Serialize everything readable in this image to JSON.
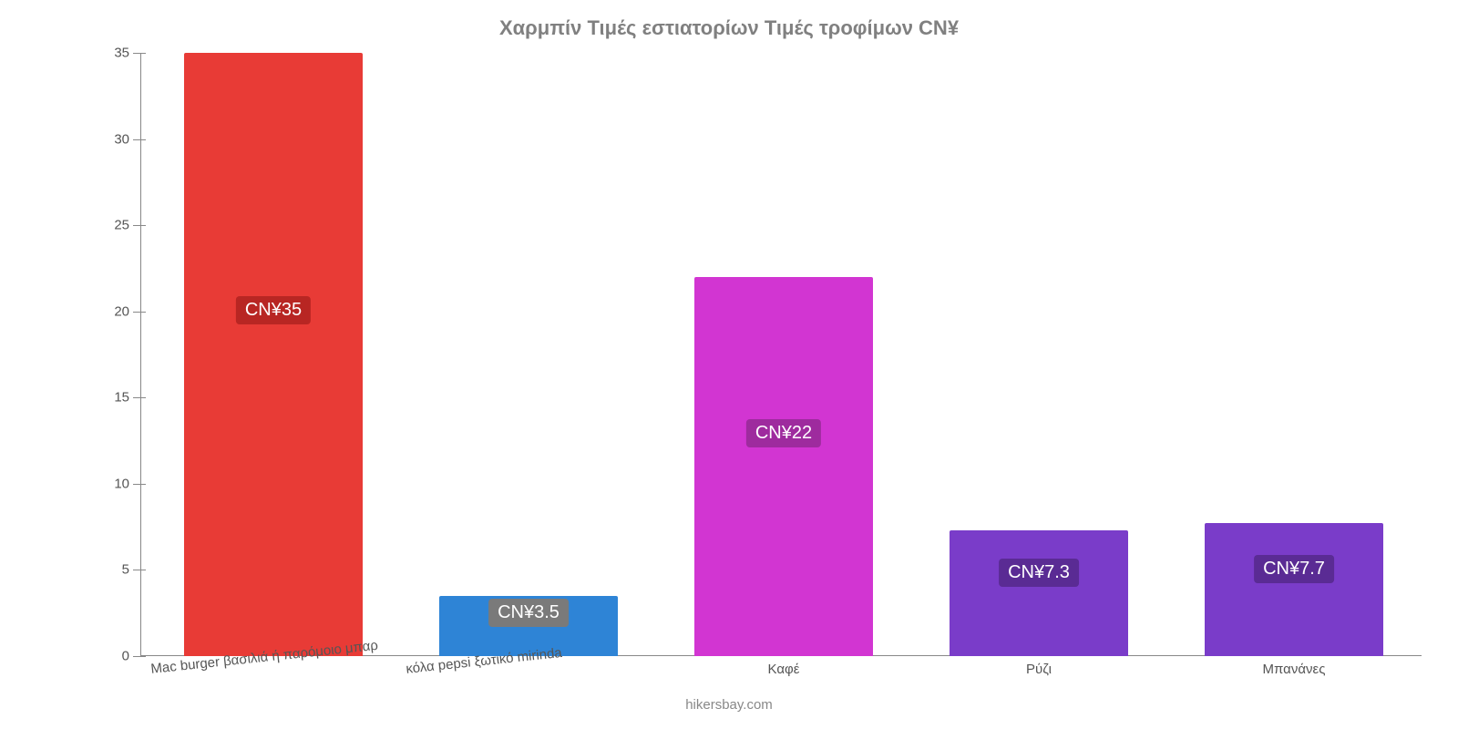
{
  "chart": {
    "type": "bar",
    "title": "Χαρμπίν Τιμές εστιατορίων Τιμές τροφίμων CN¥",
    "title_fontsize": 22,
    "title_color": "#808080",
    "background_color": "#ffffff",
    "axis_color": "#888888",
    "tick_font_color": "#555555",
    "tick_fontsize": 15,
    "ylim": [
      0,
      35
    ],
    "ytick_step": 5,
    "yticks": [
      0,
      5,
      10,
      15,
      20,
      25,
      30,
      35
    ],
    "bar_width_ratio": 0.7,
    "categories": [
      "Mac burger βασιλιά ή παρόμοιο μπαρ",
      "κόλα pepsi ξωτικό mirinda",
      "Καφέ",
      "Ρύζι",
      "Μπανάνες"
    ],
    "values": [
      35,
      3.5,
      22,
      7.3,
      7.7
    ],
    "bar_colors": [
      "#e83b36",
      "#2e84d6",
      "#d235d2",
      "#7a3cc9",
      "#7a3cc9"
    ],
    "value_labels": [
      "CN¥35",
      "CN¥3.5",
      "CN¥22",
      "CN¥7.3",
      "CN¥7.7"
    ],
    "value_label_bg": [
      "#b82623",
      "#7a7a7a",
      "#9e2b9e",
      "#5a2b94",
      "#5a2b94"
    ],
    "value_label_fontsize": 20,
    "value_label_color": "#ffffff",
    "x_label_rotation_deg": -6,
    "credit": "hikersbay.com",
    "credit_color": "#888888",
    "credit_fontsize": 15
  }
}
